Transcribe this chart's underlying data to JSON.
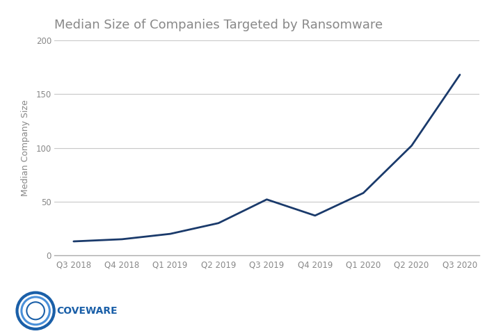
{
  "title": "Median Size of Companies Targeted by Ransomware",
  "xlabel": "",
  "ylabel": "Median Company Size",
  "categories": [
    "Q3 2018",
    "Q4 2018",
    "Q1 2019",
    "Q2 2019",
    "Q3 2019",
    "Q4 2019",
    "Q1 2020",
    "Q2 2020",
    "Q3 2020"
  ],
  "values": [
    13,
    15,
    20,
    30,
    52,
    37,
    58,
    102,
    168
  ],
  "ylim": [
    0,
    200
  ],
  "yticks": [
    0,
    50,
    100,
    150,
    200
  ],
  "line_color": "#1a3a6b",
  "line_width": 2.0,
  "bg_color": "#ffffff",
  "grid_color": "#c8c8c8",
  "title_color": "#888888",
  "title_fontsize": 13,
  "ylabel_fontsize": 9,
  "tick_fontsize": 8.5,
  "logo_ring_color_outer": "#1a5fa8",
  "logo_ring_color_inner": "#4a90d9",
  "logo_text": "COVEWARE",
  "logo_text_color": "#1a5fa8",
  "logo_fontsize": 10
}
